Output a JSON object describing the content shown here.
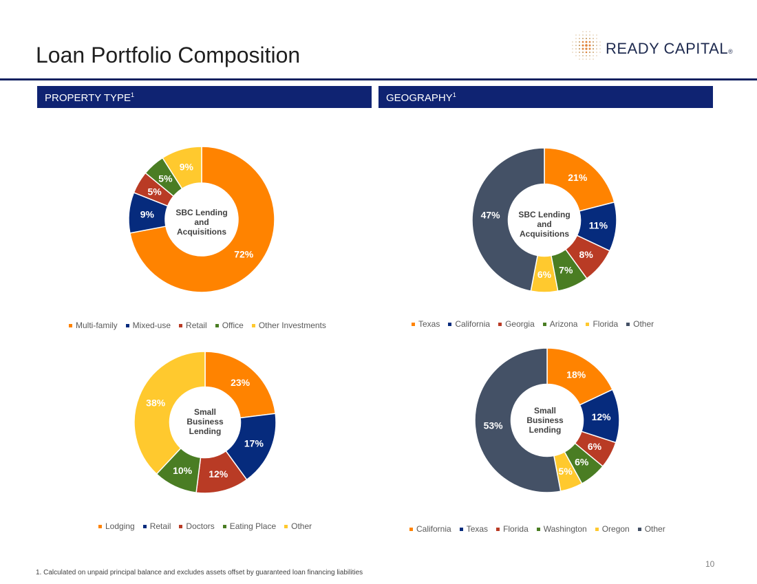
{
  "header": {
    "title": "Loan Portfolio Composition",
    "logo_text": "READY CAPITAL",
    "logo_registered": "®"
  },
  "sections": {
    "property_type": {
      "label": "PROPERTY TYPE",
      "sup": "1"
    },
    "geography": {
      "label": "GEOGRAPHY",
      "sup": "1"
    }
  },
  "colors": {
    "orange": "#ff8300",
    "navy": "#062b7d",
    "red": "#b93b25",
    "green": "#4a7d23",
    "yellow": "#ffc92e",
    "slate": "#445166",
    "header_bar": "#0f2372"
  },
  "chart_data": [
    {
      "id": "property-sbc",
      "type": "pie",
      "center_label": [
        "SBC Lending",
        "and",
        "Acquisitions"
      ],
      "categories": [
        "Multi-family",
        "Mixed-use",
        "Retail",
        "Office",
        "Other Investments"
      ],
      "values": [
        72,
        9,
        5,
        5,
        9
      ],
      "labels": [
        "72%",
        "9%",
        "5%",
        "5%",
        "9%"
      ],
      "colors": [
        "#ff8300",
        "#062b7d",
        "#b93b25",
        "#4a7d23",
        "#ffc92e"
      ],
      "label_colors": [
        "#ffffff",
        "#ffffff",
        "#ffffff",
        "#ffffff",
        "#ffffff"
      ],
      "legend_placement": "bottom"
    },
    {
      "id": "geography-sbc",
      "type": "pie",
      "center_label": [
        "SBC Lending",
        "and",
        "Acquisitions"
      ],
      "categories": [
        "Texas",
        "California",
        "Georgia",
        "Arizona",
        "Florida",
        "Other"
      ],
      "values": [
        21,
        11,
        8,
        7,
        6,
        47
      ],
      "labels": [
        "21%",
        "11%",
        "8%",
        "7%",
        "6%",
        "47%"
      ],
      "colors": [
        "#ff8300",
        "#062b7d",
        "#b93b25",
        "#4a7d23",
        "#ffc92e",
        "#445166"
      ],
      "label_colors": [
        "#ffffff",
        "#ffffff",
        "#ffffff",
        "#ffffff",
        "#ffffff",
        "#ffffff"
      ],
      "legend_placement": "bottom"
    },
    {
      "id": "property-small",
      "type": "pie",
      "center_label": [
        "Small",
        "Business",
        "Lending"
      ],
      "categories": [
        "Lodging",
        "Retail",
        "Doctors",
        "Eating Place",
        "Other"
      ],
      "values": [
        23,
        17,
        12,
        10,
        38
      ],
      "labels": [
        "23%",
        "17%",
        "12%",
        "10%",
        "38%"
      ],
      "colors": [
        "#ff8300",
        "#062b7d",
        "#b93b25",
        "#4a7d23",
        "#ffc92e"
      ],
      "label_colors": [
        "#ffffff",
        "#ffffff",
        "#ffffff",
        "#ffffff",
        "#ffffff"
      ],
      "legend_placement": "bottom"
    },
    {
      "id": "geography-small",
      "type": "pie",
      "center_label": [
        "Small",
        "Business",
        "Lending"
      ],
      "categories": [
        "California",
        "Texas",
        "Florida",
        "Washington",
        "Oregon",
        "Other"
      ],
      "values": [
        18,
        12,
        6,
        6,
        5,
        53
      ],
      "labels": [
        "18%",
        "12%",
        "6%",
        "6%",
        "5%",
        "53%"
      ],
      "colors": [
        "#ff8300",
        "#062b7d",
        "#b93b25",
        "#4a7d23",
        "#ffc92e",
        "#445166"
      ],
      "label_colors": [
        "#ffffff",
        "#ffffff",
        "#ffffff",
        "#ffffff",
        "#ffffff",
        "#ffffff"
      ],
      "legend_placement": "bottom"
    }
  ],
  "footnote": "1. Calculated on unpaid principal balance and excludes assets offset by guaranteed loan financing liabilities",
  "page_number": "10"
}
